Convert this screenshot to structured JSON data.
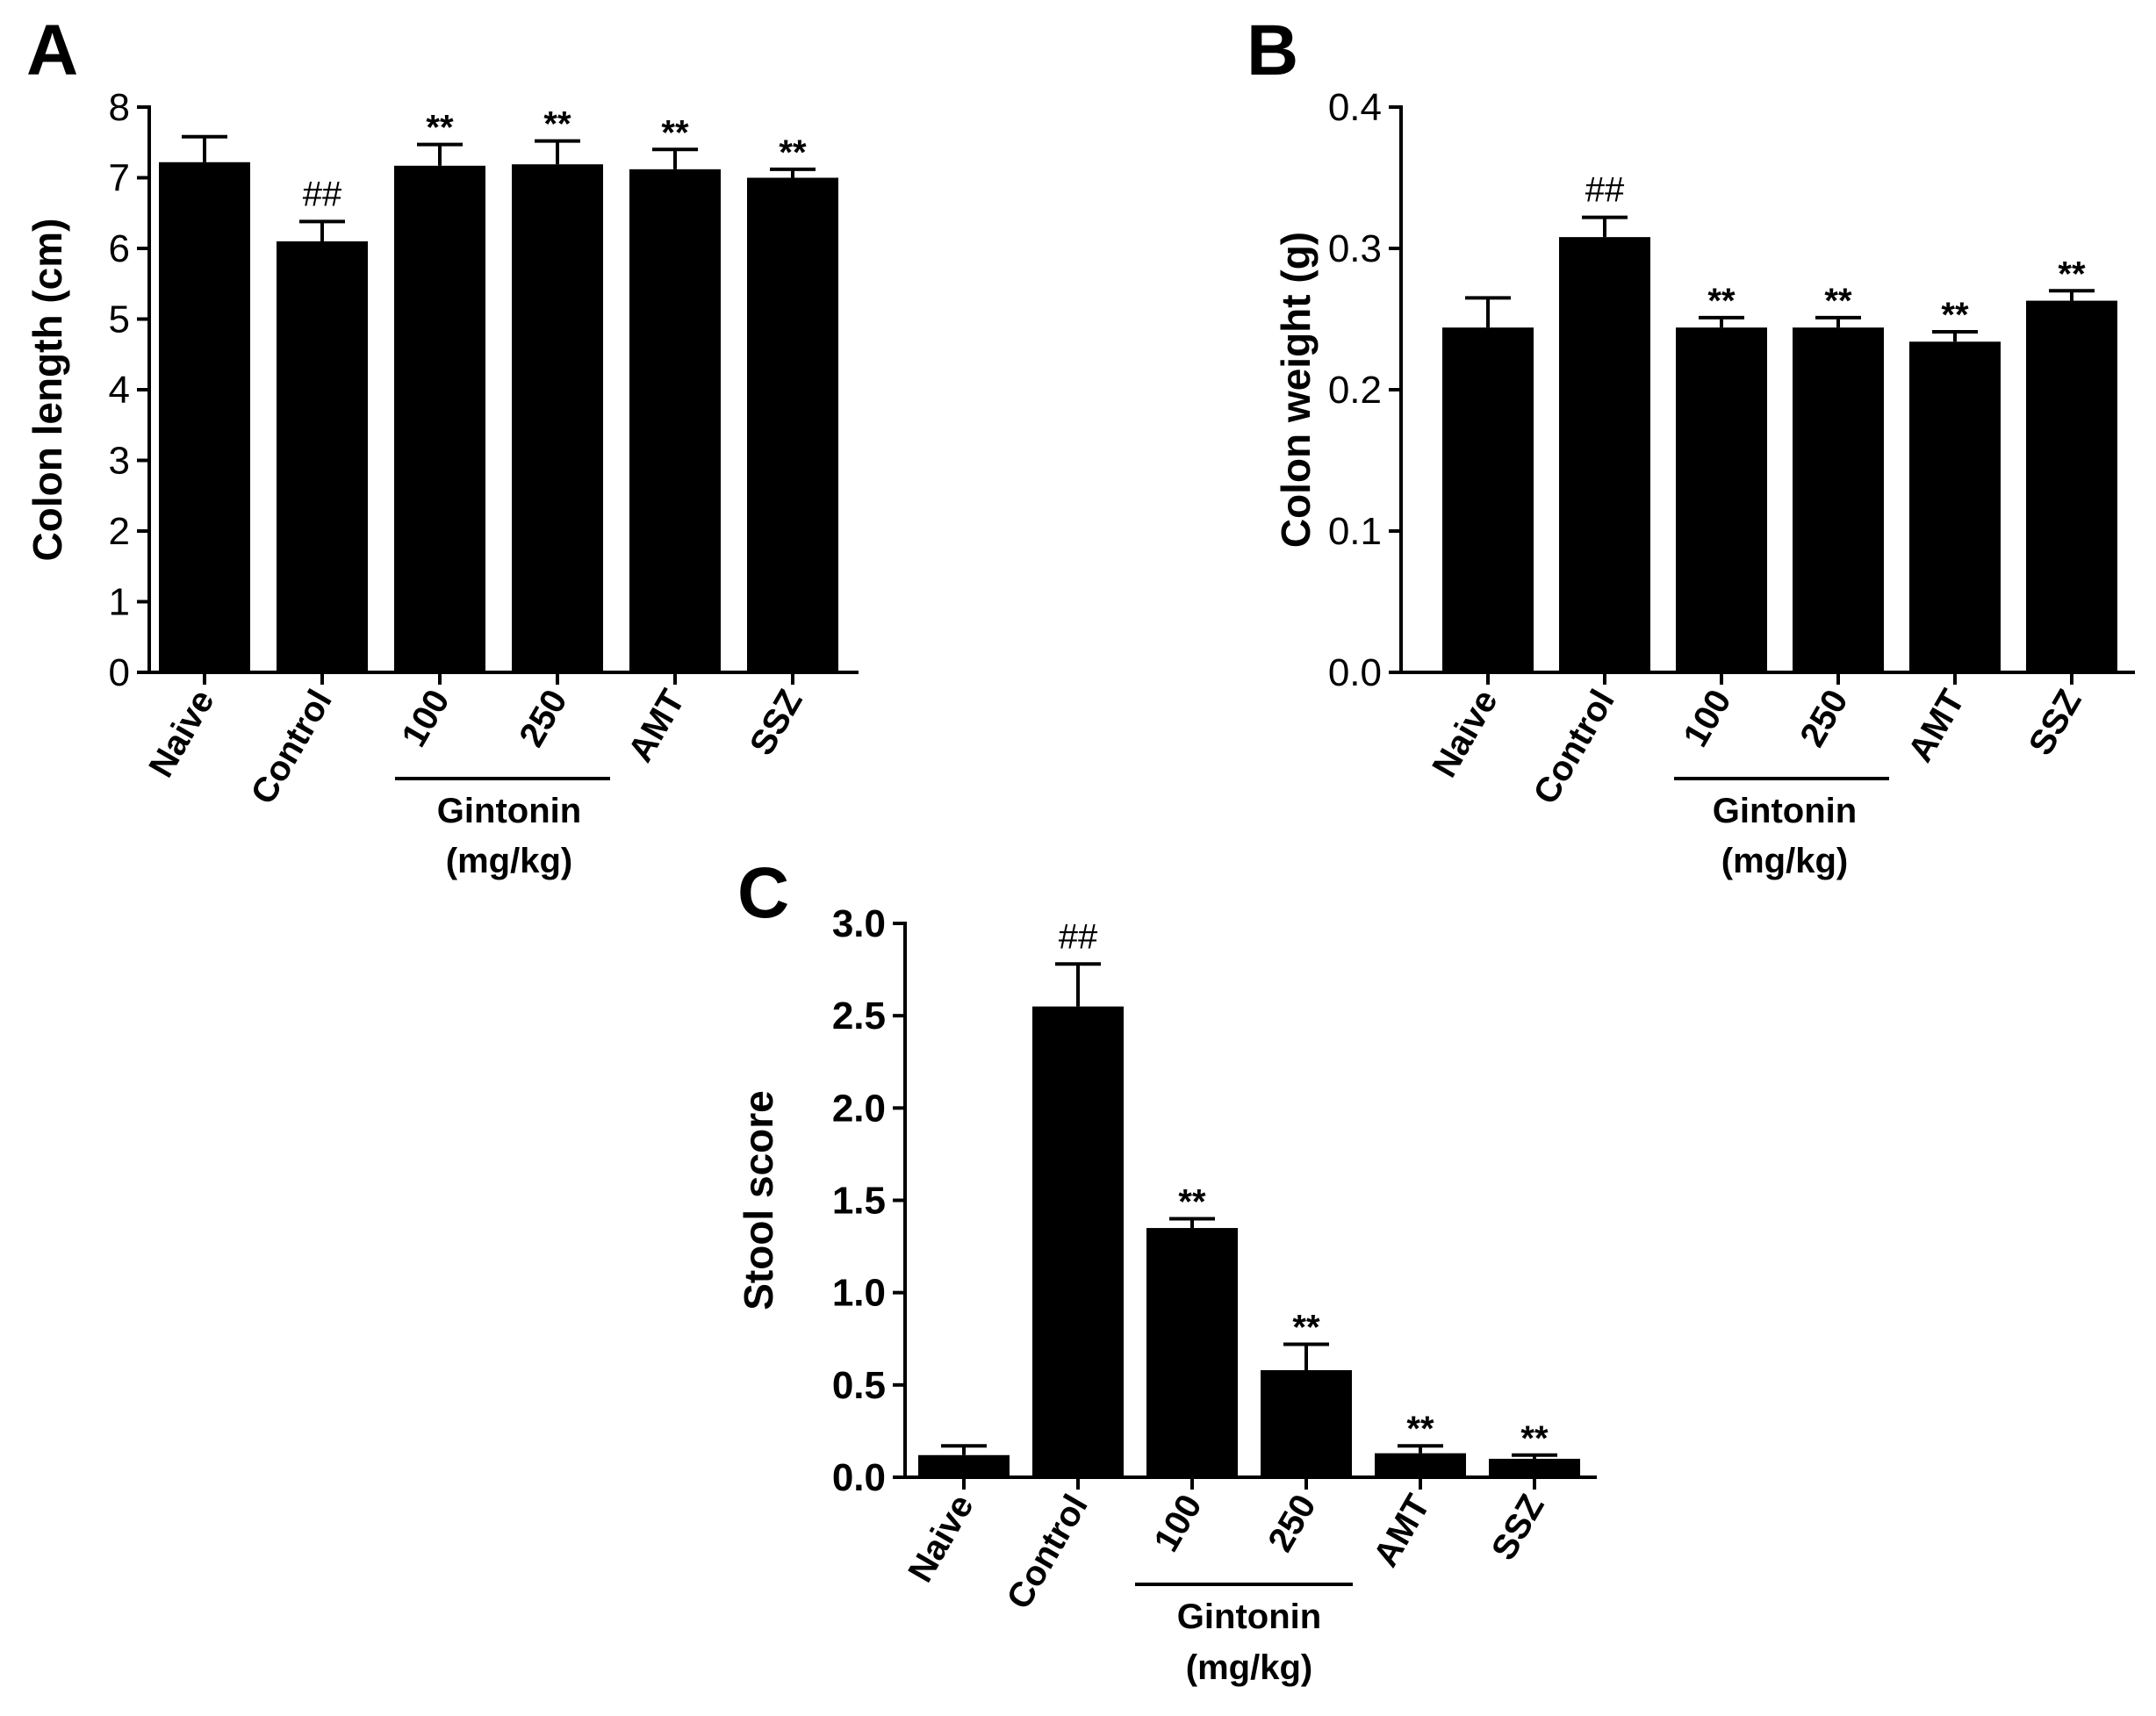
{
  "chart_data": [
    {
      "type": "bar",
      "panel": "A",
      "ylabel": "Colon length (cm)",
      "ylim": [
        0,
        8
      ],
      "yticks": [
        "0",
        "1",
        "2",
        "3",
        "4",
        "5",
        "6",
        "7",
        "8"
      ],
      "categories": [
        "Naive",
        "Control",
        "100",
        "250",
        "AMT",
        "SSZ"
      ],
      "values": [
        7.22,
        6.1,
        7.17,
        7.19,
        7.12,
        7.0
      ],
      "errors": [
        0.36,
        0.28,
        0.3,
        0.33,
        0.28,
        0.12
      ],
      "annotations": [
        "",
        "##",
        "**",
        "**",
        "**",
        "**"
      ],
      "group_label": [
        "Gintonin",
        "(mg/kg)"
      ]
    },
    {
      "type": "bar",
      "panel": "B",
      "ylabel": "Colon weight (g)",
      "ylim": [
        0,
        0.4
      ],
      "yticks": [
        "0.0",
        "0.1",
        "0.2",
        "0.3",
        "0.4"
      ],
      "categories": [
        "Naive",
        "Control",
        "100",
        "250",
        "AMT",
        "SSZ"
      ],
      "values": [
        0.244,
        0.308,
        0.244,
        0.244,
        0.234,
        0.263
      ],
      "errors": [
        0.021,
        0.014,
        0.007,
        0.007,
        0.007,
        0.007
      ],
      "annotations": [
        "",
        "##",
        "**",
        "**",
        "**",
        "**"
      ],
      "group_label": [
        "Gintonin",
        "(mg/kg)"
      ]
    },
    {
      "type": "bar",
      "panel": "C",
      "ylabel": "Stool score",
      "ylim": [
        0,
        3.0
      ],
      "yticks": [
        "0.0",
        "0.5",
        "1.0",
        "1.5",
        "2.0",
        "2.5",
        "3.0"
      ],
      "categories": [
        "Naive",
        "Control",
        "100",
        "250",
        "AMT",
        "SSZ"
      ],
      "values": [
        0.12,
        2.55,
        1.35,
        0.58,
        0.13,
        0.1
      ],
      "errors": [
        0.05,
        0.23,
        0.05,
        0.14,
        0.04,
        0.02
      ],
      "annotations": [
        "",
        "##",
        "**",
        "**",
        "**",
        "**"
      ],
      "group_label": [
        "Gintonin",
        "(mg/kg)"
      ]
    }
  ]
}
